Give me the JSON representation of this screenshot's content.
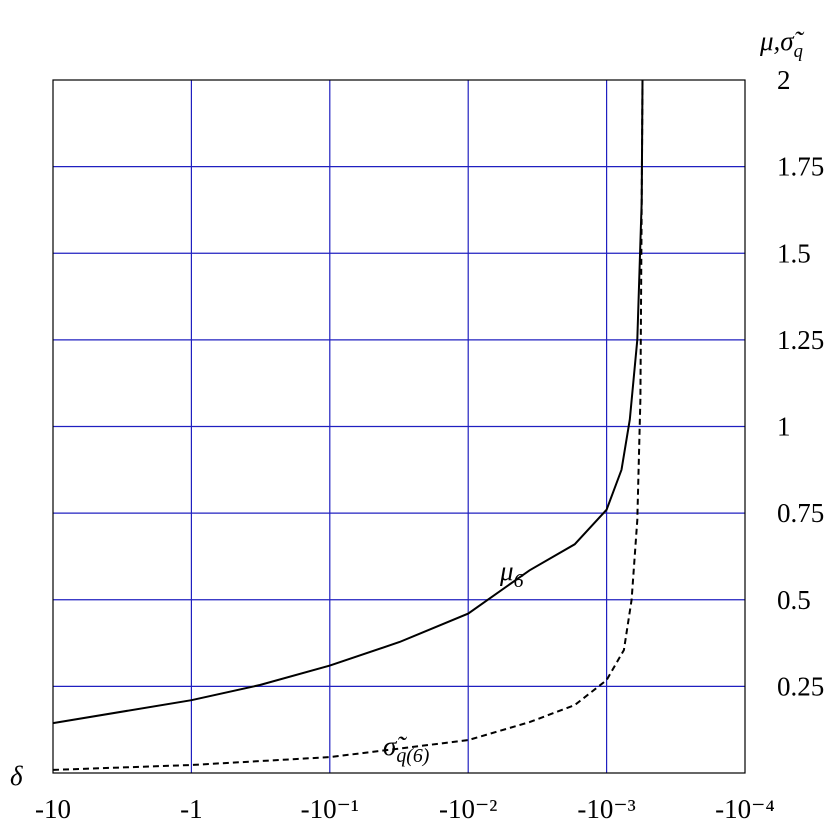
{
  "chart_data": {
    "type": "line",
    "x_label": "δ",
    "y_label": {
      "text": "μ,σ̃",
      "sub": "q"
    },
    "xscale": "neglog",
    "xlim": [
      -10,
      -0.0001
    ],
    "xticks": [
      -10,
      -1,
      {
        "value": -0.1,
        "label": "-10⁻¹"
      },
      {
        "value": -0.01,
        "label": "-10⁻²"
      },
      {
        "value": -0.001,
        "label": "-10⁻³"
      },
      {
        "value": -0.0001,
        "label": "-10⁻⁴"
      }
    ],
    "ylim": [
      0,
      2
    ],
    "yticks": [
      0.25,
      0.5,
      0.75,
      1,
      1.25,
      1.5,
      1.75,
      2
    ],
    "grid": true,
    "grid_color": "#2020c0",
    "series": [
      {
        "name": "μ6",
        "color": "#000000",
        "dash": false,
        "x": [
          -10,
          -1,
          -0.32,
          -0.1,
          -0.0313,
          -0.01,
          -0.0036,
          -0.0017,
          -0.001,
          -0.00078,
          -0.00068,
          -0.0006,
          -0.000558,
          -0.00055
        ],
        "values": [
          0.144,
          0.21,
          0.254,
          0.31,
          0.378,
          0.46,
          0.585,
          0.66,
          0.76,
          0.875,
          1.02,
          1.25,
          1.65,
          2.0
        ]
      },
      {
        "name": "σq(6)",
        "color": "#000000",
        "dash": true,
        "x": [
          -10,
          -1,
          -0.1,
          -0.01,
          -0.0036,
          -0.0017,
          -0.001,
          -0.00075,
          -0.00066,
          -0.0006,
          -0.00057,
          -0.00055
        ],
        "values": [
          0.009,
          0.023,
          0.046,
          0.095,
          0.147,
          0.196,
          0.268,
          0.355,
          0.5,
          0.73,
          1.08,
          2.0
        ]
      }
    ],
    "annotations": [
      {
        "text": "μ",
        "sub": "6"
      },
      {
        "text": "σ̃",
        "sub": "q(6)"
      }
    ]
  }
}
